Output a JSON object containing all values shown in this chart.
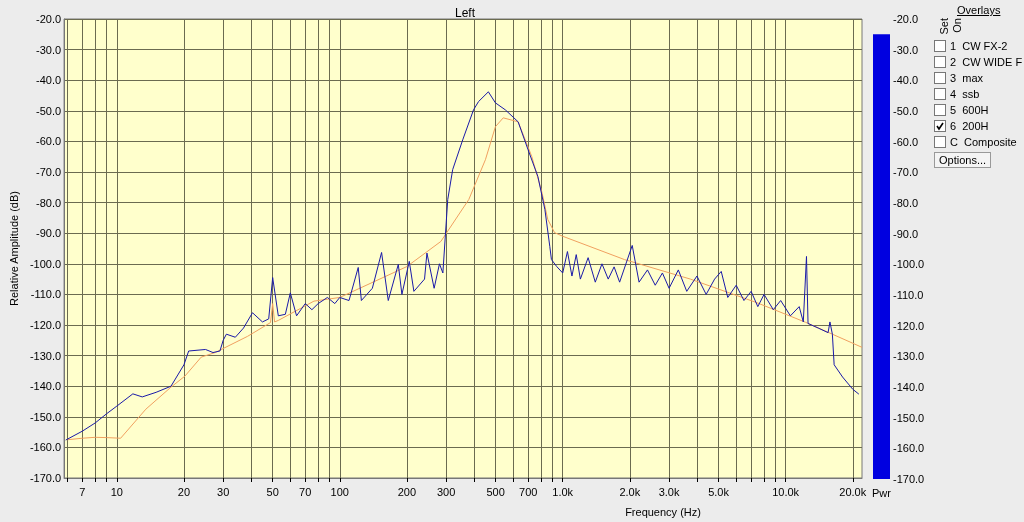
{
  "chart_data": [
    {
      "type": "line",
      "title": "Left",
      "xlabel": "Frequency (Hz)",
      "ylabel": "Relative Amplitude (dB)",
      "log": "x",
      "grid": true,
      "xlim": [
        5.8,
        22000
      ],
      "ylim": [
        -170,
        -20
      ],
      "xticks": [
        {
          "value": 6,
          "label": null
        },
        {
          "value": 7,
          "label": "7"
        },
        {
          "value": 8,
          "label": null
        },
        {
          "value": 9,
          "label": null
        },
        10,
        20,
        30,
        {
          "value": 40,
          "label": null
        },
        50,
        {
          "value": 60,
          "label": null
        },
        70,
        {
          "value": 80,
          "label": null
        },
        {
          "value": 90,
          "label": null
        },
        100,
        200,
        300,
        {
          "value": 400,
          "label": null
        },
        500,
        {
          "value": 600,
          "label": null
        },
        700,
        {
          "value": 800,
          "label": null
        },
        {
          "value": 900,
          "label": null
        },
        {
          "value": 1000,
          "label": "1.0k"
        },
        {
          "value": 2000,
          "label": "2.0k"
        },
        {
          "value": 3000,
          "label": "3.0k"
        },
        {
          "value": 4000,
          "label": null
        },
        {
          "value": 5000,
          "label": "5.0k"
        },
        {
          "value": 6000,
          "label": null
        },
        {
          "value": 7000,
          "label": null
        },
        {
          "value": 8000,
          "label": null
        },
        {
          "value": 9000,
          "label": null
        },
        {
          "value": 10000,
          "label": "10.0k"
        },
        {
          "value": 20000,
          "label": "20.0k"
        }
      ],
      "yticks": [
        {
          "value": -20,
          "label": "-20.0"
        },
        {
          "value": -30,
          "label": "-30.0"
        },
        {
          "value": -40,
          "label": "-40.0"
        },
        {
          "value": -50,
          "label": "-50.0"
        },
        {
          "value": -60,
          "label": "-60.0"
        },
        {
          "value": -70,
          "label": "-70.0"
        },
        {
          "value": -80,
          "label": "-80.0"
        },
        {
          "value": -90,
          "label": "-90.0"
        },
        {
          "value": -100,
          "label": "-100.0"
        },
        {
          "value": -110,
          "label": "-110.0"
        },
        {
          "value": -120,
          "label": "-120.0"
        },
        {
          "value": -130,
          "label": "-130.0"
        },
        {
          "value": -140,
          "label": "-140.0"
        },
        {
          "value": -150,
          "label": "-150.0"
        },
        {
          "value": -160,
          "label": "-160.0"
        },
        {
          "value": -170,
          "label": "-170.0"
        }
      ],
      "series": [
        {
          "color": "#f0a060",
          "x": [
            6,
            7,
            8,
            9,
            10.4,
            13.5,
            17.5,
            20.2,
            23.9,
            27.6,
            38.6,
            48.9,
            50,
            51,
            53,
            76.6,
            100,
            200,
            284,
            379,
            450,
            499,
            541,
            631,
            727,
            807,
            857,
            919,
            1000,
            1890,
            3740,
            7360,
            12270,
            22000
          ],
          "values": [
            -157.5,
            -157,
            -156.7,
            -156.8,
            -157,
            -147.5,
            -140.3,
            -136.7,
            -130.5,
            -129,
            -123.7,
            -119.2,
            -113,
            -119,
            -118.5,
            -112.2,
            -111,
            -100.9,
            -92.7,
            -79,
            -66,
            -55.2,
            -52.3,
            -53.6,
            -65,
            -76.7,
            -85.5,
            -89.8,
            -91,
            -98.6,
            -105,
            -112.6,
            -119.1,
            -127.3
          ]
        },
        {
          "color": "#1a1aa8",
          "x": [
            5.9,
            7,
            8,
            9,
            10,
            11.8,
            13,
            15,
            17.5,
            20,
            21,
            25,
            27,
            29,
            30,
            31,
            34,
            37,
            40.6,
            45,
            48,
            50,
            53,
            57,
            60,
            64,
            70,
            75,
            80,
            88,
            95,
            100,
            110,
            121,
            125,
            140,
            154,
            165,
            183,
            190,
            205,
            215,
            240,
            246,
            265,
            280,
            290,
            305,
            321,
            356,
            398,
            419,
            464,
            499,
            553,
            631,
            699,
            774,
            832,
            875,
            890,
            940,
            1000,
            1050,
            1100,
            1150,
            1200,
            1300,
            1400,
            1500,
            1600,
            1700,
            1800,
            2050,
            2200,
            2400,
            2600,
            2800,
            3000,
            3300,
            3600,
            4000,
            4400,
            4800,
            5140,
            5500,
            6000,
            6500,
            7000,
            7500,
            8000,
            8800,
            9500,
            10500,
            11500,
            12000,
            12400,
            12600,
            14000,
            15500,
            15800,
            16200,
            16500,
            18000,
            20000,
            21300
          ],
          "values": [
            -157.6,
            -154.7,
            -152,
            -149,
            -146.5,
            -142.5,
            -143.5,
            -142,
            -140,
            -133,
            -128.5,
            -128,
            -129,
            -128.5,
            -125,
            -123,
            -124,
            -121,
            -116,
            -119,
            -118,
            -104.5,
            -117,
            -116.5,
            -109.5,
            -117,
            -113,
            -115,
            -113,
            -111,
            -113,
            -111,
            -112,
            -101.2,
            -112,
            -108,
            -96.3,
            -112,
            -100.2,
            -110,
            -99.2,
            -109,
            -105,
            -96.5,
            -108,
            -100,
            -103,
            -79,
            -69.2,
            -59.5,
            -49.7,
            -47,
            -43.8,
            -47.4,
            -49.7,
            -53.6,
            -62.7,
            -71.5,
            -82.3,
            -94.3,
            -98.6,
            -100.9,
            -103,
            -96,
            -104,
            -97,
            -105,
            -98,
            -106,
            -100,
            -105,
            -101,
            -106,
            -94,
            -106,
            -102,
            -107,
            -103,
            -108,
            -102,
            -109,
            -104,
            -110,
            -105,
            -102.5,
            -111,
            -107,
            -112,
            -109,
            -114,
            -110,
            -115,
            -112,
            -117,
            -114,
            -119,
            -97.6,
            -119.5,
            -121,
            -122.5,
            -119,
            -123,
            -133,
            -137,
            -141,
            -142.6
          ]
        }
      ]
    },
    {
      "type": "bar",
      "categories": [
        "Pwr"
      ],
      "base": [
        -170
      ],
      "values": [
        145
      ],
      "colors": [
        "#0000e0"
      ],
      "ylim": [
        -170,
        -20
      ],
      "yticks": [
        {
          "value": -20,
          "label": "-20.0"
        },
        {
          "value": -30,
          "label": "-30.0"
        },
        {
          "value": -40,
          "label": "-40.0"
        },
        {
          "value": -50,
          "label": "-50.0"
        },
        {
          "value": -60,
          "label": "-60.0"
        },
        {
          "value": -70,
          "label": "-70.0"
        },
        {
          "value": -80,
          "label": "-80.0"
        },
        {
          "value": -90,
          "label": "-90.0"
        },
        {
          "value": -100,
          "label": "-100.0"
        },
        {
          "value": -110,
          "label": "-110.0"
        },
        {
          "value": -120,
          "label": "-120.0"
        },
        {
          "value": -130,
          "label": "-130.0"
        },
        {
          "value": -140,
          "label": "-140.0"
        },
        {
          "value": -150,
          "label": "-150.0"
        },
        {
          "value": -160,
          "label": "-160.0"
        },
        {
          "value": -170,
          "label": "-170.0"
        }
      ]
    },
    {
      "type": "other",
      "annotations": [
        "Overlays",
        "Set",
        "On",
        "1",
        "CW FX-2",
        "2",
        "CW WIDE F",
        "3",
        "max",
        "4",
        "ssb",
        "5",
        "600H",
        "6",
        "200H",
        "C",
        "Composite",
        "Options..."
      ]
    }
  ]
}
